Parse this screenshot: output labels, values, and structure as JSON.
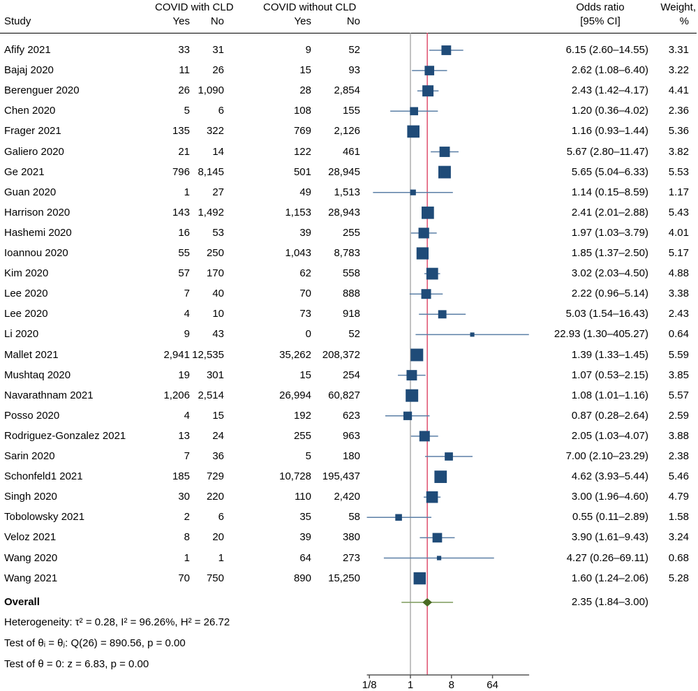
{
  "chart_data": {
    "type": "forest",
    "headers": {
      "study": "Study",
      "group1": "COVID with CLD",
      "group2": "COVID without CLD",
      "yes": "Yes",
      "no": "No",
      "or_line1": "Odds ratio",
      "or_line2": "[95% CI]",
      "weight_line1": "Weight,",
      "weight_line2": "%"
    },
    "x_scale": "log2",
    "x_ticks": [
      {
        "value": 0.125,
        "label": "1/8"
      },
      {
        "value": 1,
        "label": "1"
      },
      {
        "value": 8,
        "label": "8"
      },
      {
        "value": 64,
        "label": "64"
      }
    ],
    "xlim": [
      0.11,
      410
    ],
    "null_line": 1,
    "colors": {
      "square": "#1f4b78",
      "ci": "#5b7fa6",
      "diamond": "#4a6b23",
      "diamond_ci": "#7d9a5c",
      "overall_line": "#e0506f",
      "null_line": "#9a9a9a"
    },
    "studies": [
      {
        "study": "Afify 2021",
        "yes1": "33",
        "no1": "31",
        "yes2": "9",
        "no2": "52",
        "or": 6.15,
        "lo": 2.6,
        "hi": 14.55,
        "or_text": "6.15 (2.60–14.55)",
        "weight": "3.31"
      },
      {
        "study": "Bajaj 2020",
        "yes1": "11",
        "no1": "26",
        "yes2": "15",
        "no2": "93",
        "or": 2.62,
        "lo": 1.08,
        "hi": 6.4,
        "or_text": "2.62 (1.08–6.40)",
        "weight": "3.22"
      },
      {
        "study": "Berenguer 2020",
        "yes1": "26",
        "no1": "1,090",
        "yes2": "28",
        "no2": "2,854",
        "or": 2.43,
        "lo": 1.42,
        "hi": 4.17,
        "or_text": "2.43 (1.42–4.17)",
        "weight": "4.41"
      },
      {
        "study": "Chen 2020",
        "yes1": "5",
        "no1": "6",
        "yes2": "108",
        "no2": "155",
        "or": 1.2,
        "lo": 0.36,
        "hi": 4.02,
        "or_text": "1.20 (0.36–4.02)",
        "weight": "2.36"
      },
      {
        "study": "Frager 2021",
        "yes1": "135",
        "no1": "322",
        "yes2": "769",
        "no2": "2,126",
        "or": 1.16,
        "lo": 0.93,
        "hi": 1.44,
        "or_text": "1.16 (0.93–1.44)",
        "weight": "5.36"
      },
      {
        "study": "Galiero 2020",
        "yes1": "21",
        "no1": "14",
        "yes2": "122",
        "no2": "461",
        "or": 5.67,
        "lo": 2.8,
        "hi": 11.47,
        "or_text": "5.67 (2.80–11.47)",
        "weight": "3.82"
      },
      {
        "study": "Ge 2021",
        "yes1": "796",
        "no1": "8,145",
        "yes2": "501",
        "no2": "28,945",
        "or": 5.65,
        "lo": 5.04,
        "hi": 6.33,
        "or_text": "5.65 (5.04–6.33)",
        "weight": "5.53"
      },
      {
        "study": "Guan 2020",
        "yes1": "1",
        "no1": "27",
        "yes2": "49",
        "no2": "1,513",
        "or": 1.14,
        "lo": 0.15,
        "hi": 8.59,
        "or_text": "1.14 (0.15–8.59)",
        "weight": "1.17"
      },
      {
        "study": "Harrison 2020",
        "yes1": "143",
        "no1": "1,492",
        "yes2": "1,153",
        "no2": "28,943",
        "or": 2.41,
        "lo": 2.01,
        "hi": 2.88,
        "or_text": "2.41 (2.01–2.88)",
        "weight": "5.43"
      },
      {
        "study": "Hashemi 2020",
        "yes1": "16",
        "no1": "53",
        "yes2": "39",
        "no2": "255",
        "or": 1.97,
        "lo": 1.03,
        "hi": 3.79,
        "or_text": "1.97 (1.03–3.79)",
        "weight": "4.01"
      },
      {
        "study": "Ioannou 2020",
        "yes1": "55",
        "no1": "250",
        "yes2": "1,043",
        "no2": "8,783",
        "or": 1.85,
        "lo": 1.37,
        "hi": 2.5,
        "or_text": "1.85 (1.37–2.50)",
        "weight": "5.17"
      },
      {
        "study": "Kim 2020",
        "yes1": "57",
        "no1": "170",
        "yes2": "62",
        "no2": "558",
        "or": 3.02,
        "lo": 2.03,
        "hi": 4.5,
        "or_text": "3.02 (2.03–4.50)",
        "weight": "4.88"
      },
      {
        "study": "Lee 2020",
        "yes1": "7",
        "no1": "40",
        "yes2": "70",
        "no2": "888",
        "or": 2.22,
        "lo": 0.96,
        "hi": 5.14,
        "or_text": "2.22 (0.96–5.14)",
        "weight": "3.38"
      },
      {
        "study": "Lee 2020",
        "yes1": "4",
        "no1": "10",
        "yes2": "73",
        "no2": "918",
        "or": 5.03,
        "lo": 1.54,
        "hi": 16.43,
        "or_text": "5.03 (1.54–16.43)",
        "weight": "2.43"
      },
      {
        "study": "Li 2020",
        "yes1": "9",
        "no1": "43",
        "yes2": "0",
        "no2": "52",
        "or": 22.93,
        "lo": 1.3,
        "hi": 405.27,
        "or_text": "22.93 (1.30–405.27)",
        "weight": "0.64"
      },
      {
        "study": "Mallet 2021",
        "yes1": "2,941",
        "no1": "12,535",
        "yes2": "35,262",
        "no2": "208,372",
        "or": 1.39,
        "lo": 1.33,
        "hi": 1.45,
        "or_text": "1.39 (1.33–1.45)",
        "weight": "5.59"
      },
      {
        "study": "Mushtaq 2020",
        "yes1": "19",
        "no1": "301",
        "yes2": "15",
        "no2": "254",
        "or": 1.07,
        "lo": 0.53,
        "hi": 2.15,
        "or_text": "1.07 (0.53–2.15)",
        "weight": "3.85"
      },
      {
        "study": "Navarathnam 2021",
        "yes1": "1,206",
        "no1": "2,514",
        "yes2": "26,994",
        "no2": "60,827",
        "or": 1.08,
        "lo": 1.01,
        "hi": 1.16,
        "or_text": "1.08 (1.01–1.16)",
        "weight": "5.57"
      },
      {
        "study": "Posso 2020",
        "yes1": "4",
        "no1": "15",
        "yes2": "192",
        "no2": "623",
        "or": 0.87,
        "lo": 0.28,
        "hi": 2.64,
        "or_text": "0.87 (0.28–2.64)",
        "weight": "2.59"
      },
      {
        "study": "Rodriguez-Gonzalez 2021",
        "yes1": "13",
        "no1": "24",
        "yes2": "255",
        "no2": "963",
        "or": 2.05,
        "lo": 1.03,
        "hi": 4.07,
        "or_text": "2.05 (1.03–4.07)",
        "weight": "3.88"
      },
      {
        "study": "Sarin 2020",
        "yes1": "7",
        "no1": "36",
        "yes2": "5",
        "no2": "180",
        "or": 7.0,
        "lo": 2.1,
        "hi": 23.29,
        "or_text": "7.00 (2.10–23.29)",
        "weight": "2.38"
      },
      {
        "study": "Schonfeld1 2021",
        "yes1": "185",
        "no1": "729",
        "yes2": "10,728",
        "no2": "195,437",
        "or": 4.62,
        "lo": 3.93,
        "hi": 5.44,
        "or_text": "4.62 (3.93–5.44)",
        "weight": "5.46"
      },
      {
        "study": "Singh 2020",
        "yes1": "30",
        "no1": "220",
        "yes2": "110",
        "no2": "2,420",
        "or": 3.0,
        "lo": 1.96,
        "hi": 4.6,
        "or_text": "3.00 (1.96–4.60)",
        "weight": "4.79"
      },
      {
        "study": "Tobolowsky 2021",
        "yes1": "2",
        "no1": "6",
        "yes2": "35",
        "no2": "58",
        "or": 0.55,
        "lo": 0.11,
        "hi": 2.89,
        "or_text": "0.55 (0.11–2.89)",
        "weight": "1.58"
      },
      {
        "study": "Veloz 2021",
        "yes1": "8",
        "no1": "20",
        "yes2": "39",
        "no2": "380",
        "or": 3.9,
        "lo": 1.61,
        "hi": 9.43,
        "or_text": "3.90 (1.61–9.43)",
        "weight": "3.24"
      },
      {
        "study": "Wang 2020",
        "yes1": "1",
        "no1": "1",
        "yes2": "64",
        "no2": "273",
        "or": 4.27,
        "lo": 0.26,
        "hi": 69.11,
        "or_text": "4.27 (0.26–69.11)",
        "weight": "0.68"
      },
      {
        "study": "Wang 2021",
        "yes1": "70",
        "no1": "750",
        "yes2": "890",
        "no2": "15,250",
        "or": 1.6,
        "lo": 1.24,
        "hi": 2.06,
        "or_text": "1.60 (1.24–2.06)",
        "weight": "5.28"
      }
    ],
    "overall": {
      "label": "Overall",
      "or": 2.35,
      "lo": 1.84,
      "hi": 3.0,
      "or_text": "2.35 (1.84–3.00)"
    },
    "notes": [
      "Heterogeneity: τ² = 0.28, I² = 96.26%, H² = 26.72",
      "Test of θᵢ = θⱼ: Q(26) = 890.56, p = 0.00",
      "Test of θ = 0: z = 6.83, p = 0.00"
    ]
  }
}
